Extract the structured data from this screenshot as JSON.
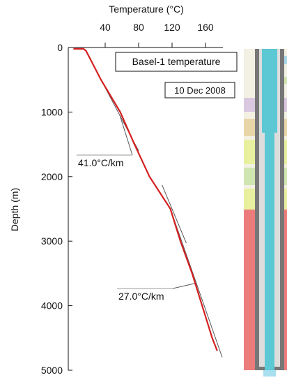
{
  "chart_data": {
    "type": "line",
    "x_label": "Temperature (°C)",
    "y_label": "Depth (m)",
    "x": [
      2,
      14,
      17,
      35,
      58,
      75,
      93,
      118,
      130,
      144,
      156,
      168,
      174
    ],
    "series": [
      {
        "name": "Basel-1 temperature",
        "color": "#d42020",
        "values": [
          20,
          20,
          50,
          500,
          1000,
          1500,
          2000,
          2500,
          3000,
          3500,
          4000,
          4500,
          4700
        ]
      }
    ],
    "date": "10 Dec 2008",
    "fits": [
      {
        "label": "41.0°C/km",
        "x": [
          35,
          80
        ],
        "y": [
          500,
          1600
        ]
      },
      {
        "x": [
          108,
          137
        ],
        "y": [
          2130,
          3030
        ]
      },
      {
        "label": "27.0°C/km",
        "x": [
          118,
          180
        ],
        "y": [
          2500,
          4800
        ]
      }
    ],
    "xlim": [
      0,
      180
    ],
    "xticks": [
      40,
      80,
      120,
      160
    ],
    "ylim": [
      0,
      5000
    ],
    "yticks": [
      0,
      1000,
      2000,
      3000,
      4000,
      5000
    ],
    "y_inverted": true,
    "x_axis_top": true
  }
}
